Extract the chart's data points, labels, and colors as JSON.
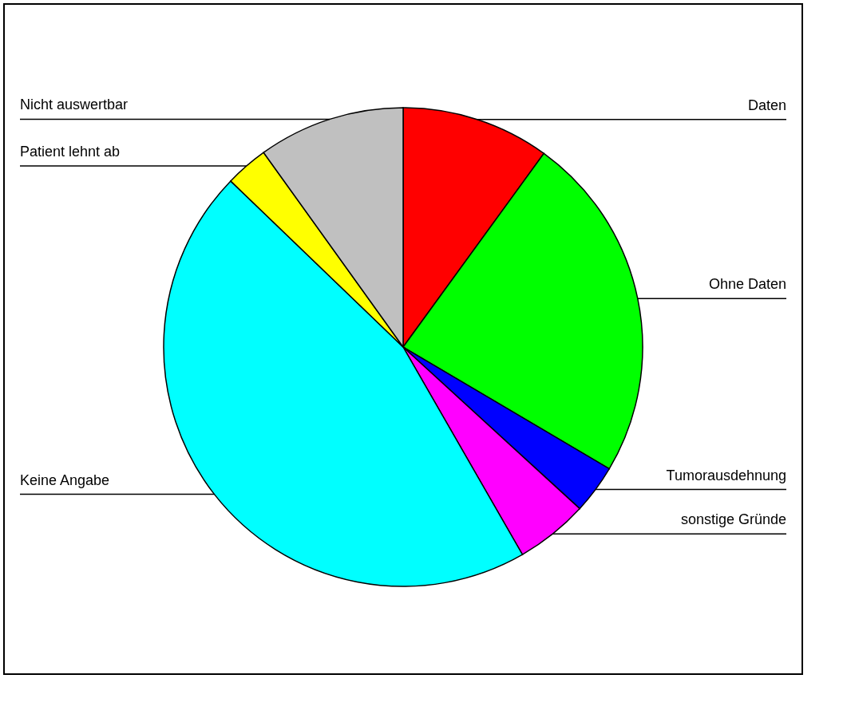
{
  "chart_data": {
    "type": "pie",
    "categories": [
      "Daten",
      "Ohne Daten",
      "Tumorausdehnung",
      "sonstige Gründe",
      "Keine Angabe",
      "Patient lehnt ab",
      "Nicht auswertbar"
    ],
    "values": [
      10,
      23.5,
      3.3,
      4.9,
      45.5,
      2.9,
      9.9
    ],
    "colors": [
      "#ff0000",
      "#00ff00",
      "#0000ff",
      "#ff00ff",
      "#00ffff",
      "#ffff00",
      "#c0c0c0"
    ]
  }
}
